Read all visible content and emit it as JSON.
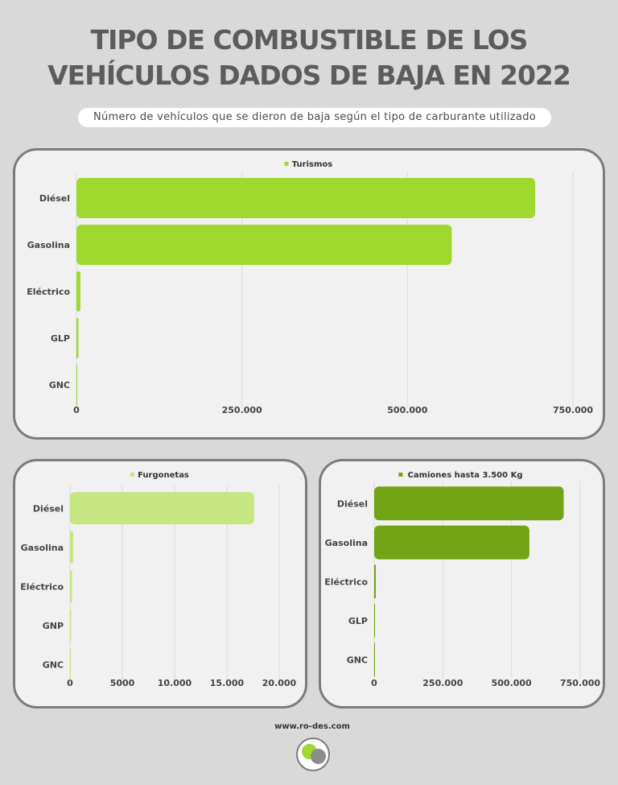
{
  "header": {
    "title_line1": "TIPO DE COMBUSTIBLE DE LOS",
    "title_line2": "VEHÍCULOS DADOS DE BAJA EN 2022",
    "subtitle": "Número de vehículos que se dieron de baja según el tipo de carburante utilizado"
  },
  "footer": {
    "url": "www.ro-des.com"
  },
  "chart_data": [
    {
      "type": "bar",
      "orientation": "horizontal",
      "legend": "Turismos",
      "legend_position": "top",
      "color": "#a0d92e",
      "categories": [
        "Diésel",
        "Gasolina",
        "Eléctrico",
        "GLP",
        "GNC"
      ],
      "values": [
        693000,
        567000,
        6000,
        3000,
        300
      ],
      "xlim": [
        0,
        750000
      ],
      "xticks": [
        "0",
        "250.000",
        "500.000",
        "750.000"
      ],
      "grid": true
    },
    {
      "type": "bar",
      "orientation": "horizontal",
      "legend": "Furgonetas",
      "legend_position": "top",
      "color": "#c5e680",
      "categories": [
        "Diésel",
        "Gasolina",
        "Eléctrico",
        "GNP",
        "GNC"
      ],
      "values": [
        17600,
        300,
        200,
        100,
        20
      ],
      "xlim": [
        0,
        20000
      ],
      "xticks": [
        "0",
        "5000",
        "10.000",
        "15.000",
        "20.000"
      ],
      "grid": true
    },
    {
      "type": "bar",
      "orientation": "horizontal",
      "legend": "Camiones hasta 3.500 Kg",
      "legend_position": "top",
      "color": "#72a515",
      "categories": [
        "Diésel",
        "Gasolina",
        "Eléctrico",
        "GLP",
        "GNC"
      ],
      "values": [
        690000,
        565000,
        6000,
        3000,
        300
      ],
      "xlim": [
        0,
        750000
      ],
      "xticks": [
        "0",
        "250.000",
        "500.000",
        "750.000"
      ],
      "grid": true
    }
  ]
}
